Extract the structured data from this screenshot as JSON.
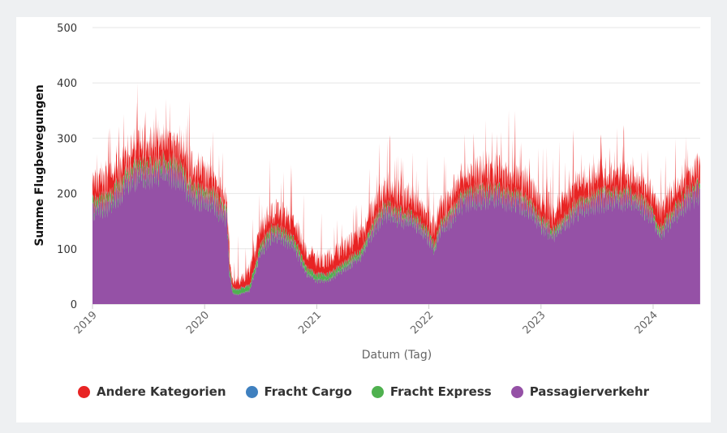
{
  "chart_data": {
    "type": "area",
    "stacked": true,
    "xlabel": "Datum (Tag)",
    "ylabel": "Summe Flugbewegungen",
    "ylim": [
      0,
      500
    ],
    "y_ticks": [
      "0",
      "100",
      "200",
      "300",
      "400",
      "500"
    ],
    "x_range": [
      2019.0,
      2024.42
    ],
    "x_ticks": [
      {
        "label": "2019",
        "value": 2019
      },
      {
        "label": "2020",
        "value": 2020
      },
      {
        "label": "2021",
        "value": 2021
      },
      {
        "label": "2022",
        "value": 2022
      },
      {
        "label": "2023",
        "value": 2023
      },
      {
        "label": "2024",
        "value": 2024
      }
    ],
    "series": [
      {
        "name": "Passagierverkehr",
        "color": "#9551a6",
        "x": [
          2019.0,
          2019.1,
          2019.2,
          2019.3,
          2019.4,
          2019.5,
          2019.6,
          2019.7,
          2019.8,
          2019.85,
          2019.9,
          2020.0,
          2020.1,
          2020.15,
          2020.2,
          2020.22,
          2020.25,
          2020.3,
          2020.4,
          2020.45,
          2020.5,
          2020.6,
          2020.7,
          2020.8,
          2020.9,
          2021.0,
          2021.1,
          2021.2,
          2021.3,
          2021.4,
          2021.5,
          2021.6,
          2021.7,
          2021.8,
          2021.9,
          2022.0,
          2022.05,
          2022.1,
          2022.2,
          2022.3,
          2022.4,
          2022.5,
          2022.6,
          2022.7,
          2022.8,
          2022.9,
          2023.0,
          2023.05,
          2023.1,
          2023.2,
          2023.3,
          2023.4,
          2023.5,
          2023.6,
          2023.7,
          2023.8,
          2023.9,
          2024.0,
          2024.05,
          2024.1,
          2024.2,
          2024.3,
          2024.42
        ],
        "values": [
          180,
          185,
          200,
          230,
          245,
          250,
          252,
          250,
          245,
          215,
          205,
          200,
          190,
          175,
          165,
          60,
          20,
          18,
          25,
          60,
          100,
          130,
          125,
          110,
          60,
          45,
          45,
          60,
          75,
          90,
          140,
          175,
          165,
          160,
          150,
          125,
          100,
          140,
          165,
          195,
          205,
          205,
          205,
          200,
          195,
          180,
          150,
          145,
          130,
          150,
          175,
          190,
          195,
          200,
          200,
          200,
          185,
          165,
          130,
          145,
          170,
          200,
          215
        ]
      },
      {
        "name": "Fracht Express",
        "color": "#4fb14f",
        "x": [
          2019.0,
          2020.0,
          2020.25,
          2020.45,
          2021.0,
          2022.0,
          2023.0,
          2024.0,
          2024.42
        ],
        "values": [
          12,
          12,
          8,
          10,
          10,
          8,
          8,
          8,
          8
        ]
      },
      {
        "name": "Fracht Cargo",
        "color": "#3f80bf",
        "x": [
          2019.0,
          2024.42
        ],
        "values": [
          1,
          1
        ]
      },
      {
        "name": "Andere Kategorien",
        "color": "#e82424",
        "x": [
          2019.0,
          2019.5,
          2020.0,
          2020.25,
          2020.5,
          2021.0,
          2021.5,
          2022.0,
          2022.5,
          2023.0,
          2023.5,
          2024.0,
          2024.42
        ],
        "values": [
          30,
          40,
          35,
          12,
          30,
          25,
          30,
          30,
          35,
          30,
          32,
          30,
          30
        ]
      }
    ]
  },
  "legend": {
    "items": [
      {
        "label": "Andere Kategorien",
        "color": "#e82424"
      },
      {
        "label": "Fracht Cargo",
        "color": "#3f80bf"
      },
      {
        "label": "Fracht Express",
        "color": "#4fb14f"
      },
      {
        "label": "Passagierverkehr",
        "color": "#9551a6"
      }
    ]
  }
}
